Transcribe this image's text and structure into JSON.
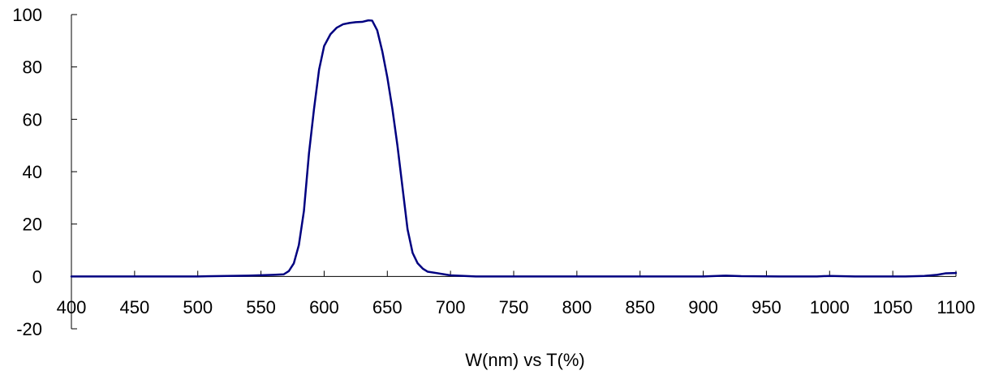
{
  "chart_data": {
    "type": "line",
    "title": "",
    "xlabel": "W(nm) vs T(%)",
    "ylabel": "",
    "xlim": [
      400,
      1100
    ],
    "ylim": [
      -20,
      100
    ],
    "x_ticks": [
      400,
      450,
      500,
      550,
      600,
      650,
      700,
      750,
      800,
      850,
      900,
      950,
      1000,
      1050,
      1100
    ],
    "y_ticks": [
      -20,
      0,
      20,
      40,
      60,
      80,
      100
    ],
    "x_tick_labels": [
      "400",
      "450",
      "500",
      "550",
      "600",
      "650",
      "700",
      "750",
      "800",
      "850",
      "900",
      "950",
      "1000",
      "1050",
      "1100"
    ],
    "y_tick_labels": [
      "-20",
      "0",
      "20",
      "40",
      "60",
      "80",
      "100"
    ],
    "grid": false,
    "legend": "none",
    "series": [
      {
        "color": "#000080",
        "points": [
          [
            400,
            0
          ],
          [
            450,
            0
          ],
          [
            500,
            0
          ],
          [
            540,
            0.3
          ],
          [
            560,
            0.6
          ],
          [
            568,
            0.8
          ],
          [
            572,
            2
          ],
          [
            576,
            5
          ],
          [
            580,
            12
          ],
          [
            584,
            25
          ],
          [
            588,
            47
          ],
          [
            592,
            64
          ],
          [
            596,
            79
          ],
          [
            600,
            88
          ],
          [
            605,
            92.5
          ],
          [
            610,
            95
          ],
          [
            615,
            96.3
          ],
          [
            620,
            96.8
          ],
          [
            625,
            97.1
          ],
          [
            630,
            97.2
          ],
          [
            635,
            97.8
          ],
          [
            638,
            97.7
          ],
          [
            642,
            94
          ],
          [
            646,
            86
          ],
          [
            650,
            76
          ],
          [
            654,
            64
          ],
          [
            658,
            50
          ],
          [
            662,
            34
          ],
          [
            666,
            18
          ],
          [
            670,
            9
          ],
          [
            674,
            5
          ],
          [
            678,
            3
          ],
          [
            682,
            1.8
          ],
          [
            690,
            1.2
          ],
          [
            700,
            0.4
          ],
          [
            720,
            0
          ],
          [
            800,
            0
          ],
          [
            860,
            0
          ],
          [
            900,
            0
          ],
          [
            918,
            0.3
          ],
          [
            930,
            0.1
          ],
          [
            960,
            0
          ],
          [
            990,
            0
          ],
          [
            1000,
            0.2
          ],
          [
            1020,
            0
          ],
          [
            1060,
            0
          ],
          [
            1075,
            0.2
          ],
          [
            1085,
            0.6
          ],
          [
            1092,
            1.2
          ],
          [
            1100,
            1.3
          ]
        ]
      }
    ]
  }
}
